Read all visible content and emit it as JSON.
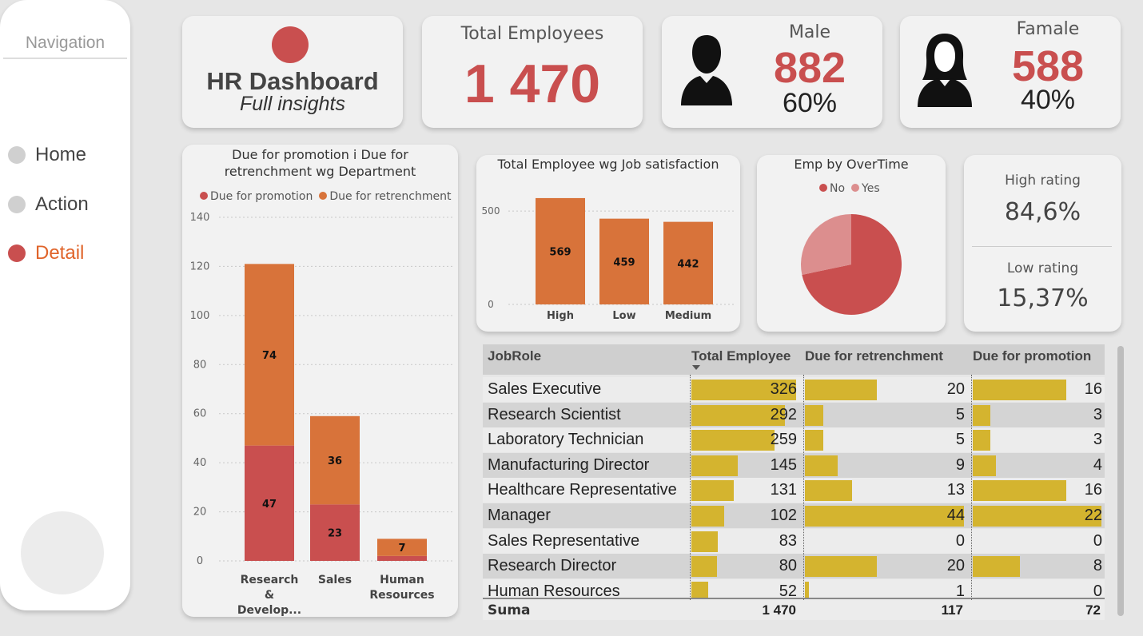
{
  "nav": {
    "title": "Navigation",
    "items": [
      {
        "label": "Home",
        "active": false
      },
      {
        "label": "Action",
        "active": false
      },
      {
        "label": "Detail",
        "active": true
      }
    ]
  },
  "header": {
    "title": "HR Dashboard",
    "subtitle": "Full insights"
  },
  "kpis": {
    "total_label": "Total Employees",
    "total_value": "1 470",
    "male_label": "Male",
    "male_value": "882",
    "male_pct": "60%",
    "female_label": "Famale",
    "female_value": "588",
    "female_pct": "40%"
  },
  "rating": {
    "high_label": "High rating",
    "high_value": "84,6%",
    "low_label": "Low rating",
    "low_value": "15,37%"
  },
  "colors": {
    "accent_red": "#c94f4f",
    "accent_orange": "#d8733a",
    "pie_yes": "#dc8e8e",
    "table_bar": "#d4b42f"
  },
  "chart_data": [
    {
      "type": "bar",
      "stacked": true,
      "title": "Due for promotion i Due for retrenchment wg Department",
      "categories": [
        "Research & Develop...",
        "Sales",
        "Human Resources"
      ],
      "series": [
        {
          "name": "Due for promotion",
          "values": [
            47,
            23,
            2
          ]
        },
        {
          "name": "Due for retrenchment",
          "values": [
            74,
            36,
            7
          ]
        }
      ],
      "data_labels": [
        {
          "series": "Due for promotion",
          "labels": [
            "47",
            "23",
            ""
          ]
        },
        {
          "series": "Due for retrenchment",
          "labels": [
            "74",
            "36",
            "7"
          ]
        }
      ],
      "ylim": [
        0,
        140
      ],
      "yticks": [
        0,
        20,
        40,
        60,
        80,
        100,
        120,
        140
      ],
      "legend": "top"
    },
    {
      "type": "bar",
      "title": "Total Employee wg Job satisfaction",
      "categories": [
        "High",
        "Low",
        "Medium"
      ],
      "values": [
        569,
        459,
        442
      ],
      "ylim": [
        0,
        620
      ],
      "yticks": [
        0,
        500
      ]
    },
    {
      "type": "pie",
      "title": "Emp by OverTime",
      "labels": [
        "No",
        "Yes"
      ],
      "values": [
        1054,
        416
      ],
      "legend": "top"
    }
  ],
  "table": {
    "headers": [
      "JobRole",
      "Total Employee",
      "Due for retrenchment",
      "Due for promotion"
    ],
    "rows": [
      {
        "role": "Sales Executive",
        "total": 326,
        "retr": 20,
        "promo": 16
      },
      {
        "role": "Research Scientist",
        "total": 292,
        "retr": 5,
        "promo": 3
      },
      {
        "role": "Laboratory Technician",
        "total": 259,
        "retr": 5,
        "promo": 3
      },
      {
        "role": "Manufacturing Director",
        "total": 145,
        "retr": 9,
        "promo": 4
      },
      {
        "role": "Healthcare Representative",
        "total": 131,
        "retr": 13,
        "promo": 16
      },
      {
        "role": "Manager",
        "total": 102,
        "retr": 44,
        "promo": 22
      },
      {
        "role": "Sales Representative",
        "total": 83,
        "retr": 0,
        "promo": 0
      },
      {
        "role": "Research Director",
        "total": 80,
        "retr": 20,
        "promo": 8
      },
      {
        "role": "Human Resources",
        "total": 52,
        "retr": 1,
        "promo": 0
      }
    ],
    "total_row": {
      "label": "Suma",
      "total": "1 470",
      "retr": "117",
      "promo": "72"
    }
  }
}
